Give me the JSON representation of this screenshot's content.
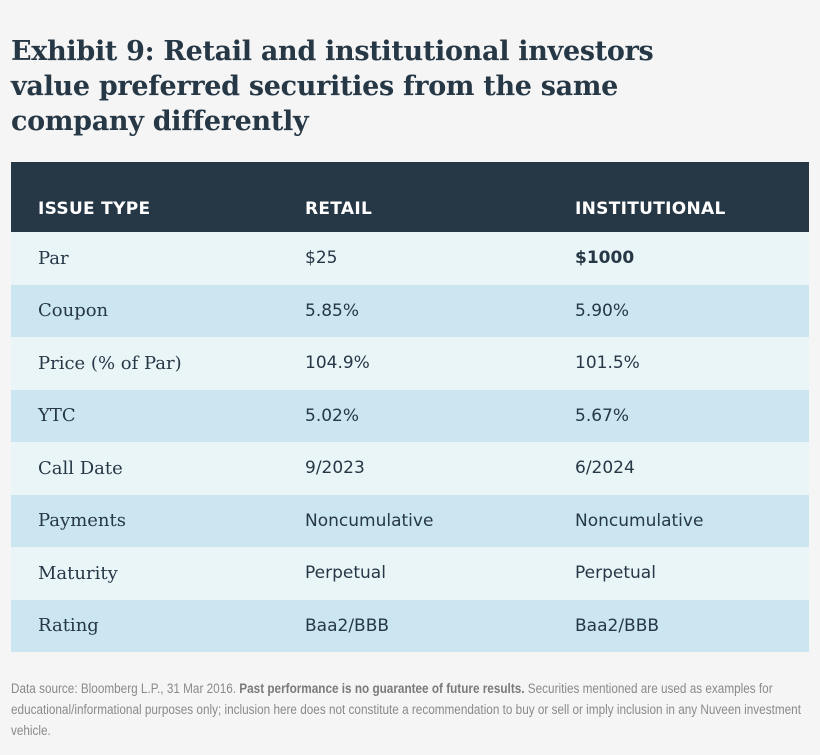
{
  "title": "Exhibit 9: Retail and institutional investors value preferred securities from the same company differently",
  "table": {
    "headers": [
      "ISSUE TYPE",
      "RETAIL",
      "INSTITUTIONAL"
    ],
    "rows": [
      [
        "Par",
        "$25",
        "$1000"
      ],
      [
        "Coupon",
        "5.85%",
        "5.90%"
      ],
      [
        "Price (% of Par)",
        "104.9%",
        "101.5%"
      ],
      [
        "YTC",
        "5.02%",
        "5.67%"
      ],
      [
        "Call Date",
        "9/2023",
        "6/2024"
      ],
      [
        "Payments",
        "Noncumulative",
        "Noncumulative"
      ],
      [
        "Maturity",
        "Perpetual",
        "Perpetual"
      ],
      [
        "Rating",
        "Baa2/BBB",
        "Baa2/BBB"
      ]
    ]
  },
  "footnote": {
    "source": "Data source: Bloomberg L.P., 31 Mar 2016.",
    "disclaimer_bold": "Past performance is no guarantee of future results.",
    "disclaimer": "Securities mentioned are used as examples for educational/informational purposes only; inclusion here does not constitute a recommendation to buy or sell or imply inclusion in any Nuveen investment vehicle."
  },
  "colors": {
    "header_bg": "#263746",
    "row_light": "#eaf5f8",
    "row_dark": "#cbe6f0",
    "page_bg": "#f5f5f5"
  }
}
